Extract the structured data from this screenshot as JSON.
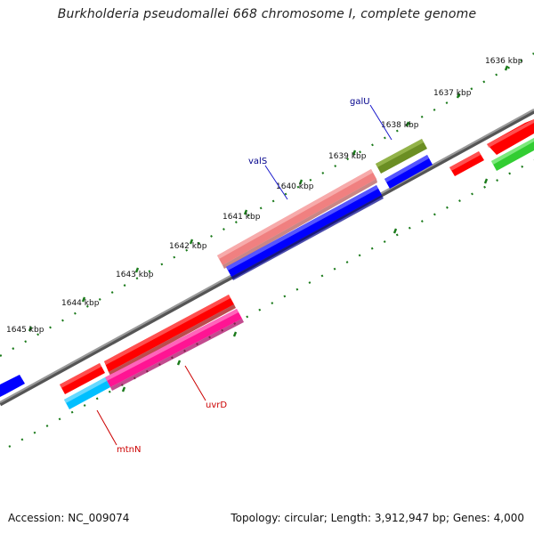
{
  "title": "Burkholderia pseudomallei 668 chromosome I, complete genome",
  "scale_labels": [
    "1636 kbp",
    "1637 kbp",
    "1638 kbp",
    "1639 kbp",
    "1640 kbp",
    "1641 kbp",
    "1642 kbp",
    "1643 kbp",
    "1644 kbp",
    "1645 kbp"
  ],
  "genes": {
    "galU": {
      "name": "galU",
      "color": "#6b8e23"
    },
    "valS": {
      "name": "valS",
      "color": "#f08080"
    },
    "uvrD": {
      "name": "uvrD",
      "color": "#ff1493"
    },
    "mtnN": {
      "name": "mtnN",
      "color": "#00bfff"
    }
  },
  "label_colors": {
    "forward_label": "#00008b",
    "reverse_label": "#cc0000"
  },
  "feature_colors": {
    "red": "#ff0000",
    "blue": "#0000ff",
    "green": "#32cd32",
    "backbone": "#888888"
  },
  "footer": {
    "accession": "Accession: NC_009074",
    "summary": "Topology: circular; Length: 3,912,947 bp; Genes: 4,000"
  }
}
